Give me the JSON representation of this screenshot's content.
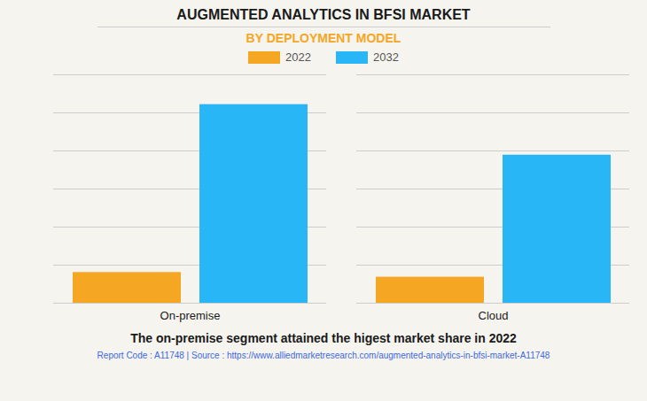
{
  "chart_data": {
    "type": "bar",
    "title": "AUGMENTED ANALYTICS IN BFSI MARKET",
    "subtitle": "BY DEPLOYMENT MODEL",
    "categories": [
      "On-premise",
      "Cloud"
    ],
    "series": [
      {
        "name": "2022",
        "color": "#F5A623",
        "values": [
          0.85,
          0.72
        ]
      },
      {
        "name": "2032",
        "color": "#29B6F6",
        "values": [
          5.5,
          4.1
        ]
      }
    ],
    "ylim": [
      0,
      6.325
    ],
    "yticks": [
      0,
      1.0541666666666667,
      2.1083333333333334,
      3.1625,
      4.216666666666667,
      5.270833333333333,
      6.325
    ],
    "grid": true,
    "tick_labels": "x",
    "legend": "top",
    "annotation": "The on-premise segment attained the higest market share in 2022",
    "footer": "Report Code : A11748  |  Source : https://www.alliedmarketresearch.com/augmented-analytics-in-bfsi-market-A11748"
  }
}
